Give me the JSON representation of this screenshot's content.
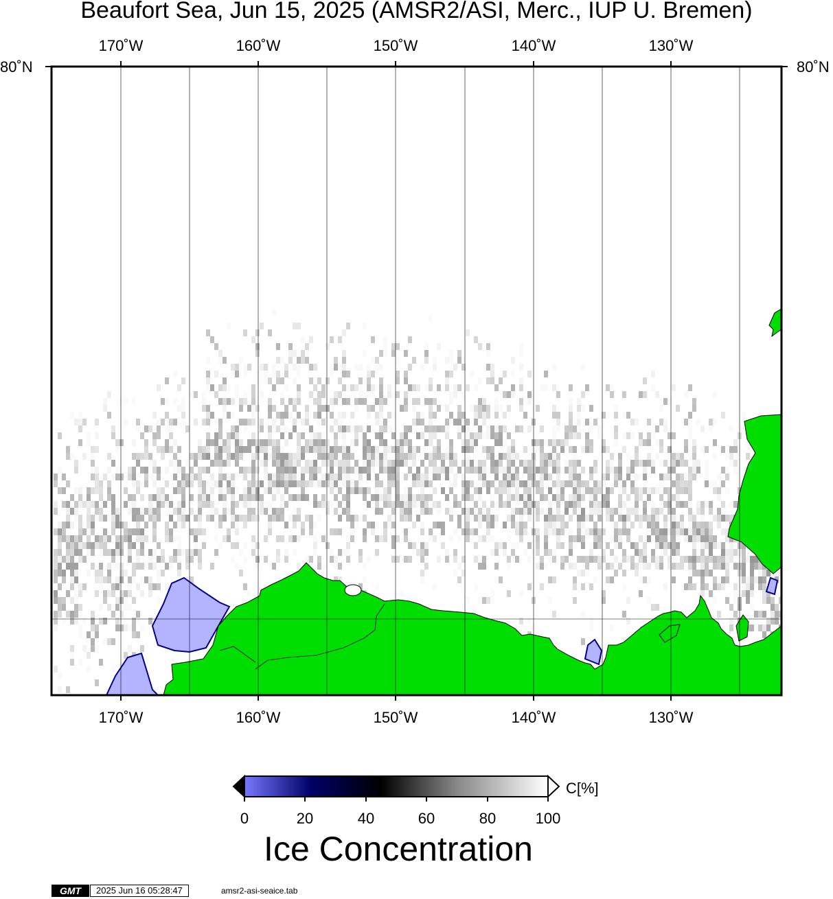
{
  "title": "Beaufort Sea, Jun 15, 2025 (AMSR2/ASI, Merc., IUP U. Bremen)",
  "map": {
    "projection": "Mercator",
    "lon_labels": [
      "170˚W",
      "160˚W",
      "150˚W",
      "140˚W",
      "130˚W"
    ],
    "lat_label": "80˚N",
    "land_color": "#00dd00",
    "ocean_color": "#ffffff",
    "low_concentration_color": "#b3b3ff"
  },
  "colorbar": {
    "title": "Ice Concentration",
    "unit": "C[%]",
    "ticks": [
      "0",
      "20",
      "40",
      "60",
      "80",
      "100"
    ],
    "range": [
      0,
      100
    ],
    "colors": [
      "#7777ff",
      "#000066",
      "#000000",
      "#888888",
      "#ffffff"
    ]
  },
  "footer": {
    "logo": "GMT",
    "timestamp": "2025 Jun 16 05:28:47",
    "source": "amsr2-asi-seaice.tab"
  }
}
